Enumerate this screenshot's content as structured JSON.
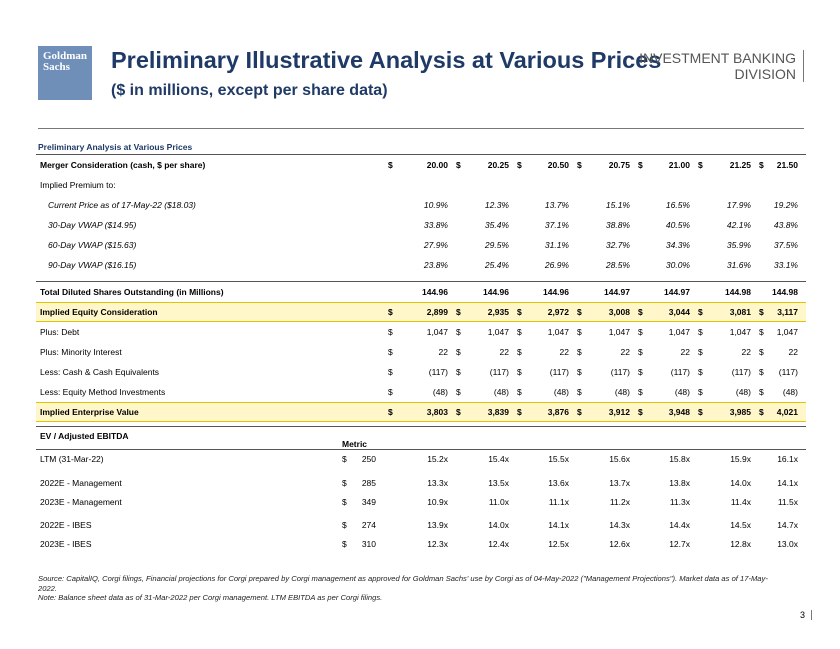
{
  "header": {
    "logo_line1": "Goldman",
    "logo_line2": "Sachs",
    "title": "Preliminary Illustrative Analysis at Various Prices",
    "subtitle": "($ in millions, except per share data)",
    "division_line1": "INVESTMENT BANKING",
    "division_line2": "DIVISION"
  },
  "table": {
    "section_title": "Preliminary Analysis at Various Prices",
    "merger": {
      "label": "Merger Consideration (cash, $ per share)",
      "values": [
        "20.00",
        "20.25",
        "20.50",
        "20.75",
        "21.00",
        "21.25",
        "21.50"
      ]
    },
    "implied_premium_label": "Implied Premium to:",
    "premiums": [
      {
        "label": "Current Price as of 17-May-22 ($18.03)",
        "values": [
          "10.9%",
          "12.3%",
          "13.7%",
          "15.1%",
          "16.5%",
          "17.9%",
          "19.2%"
        ]
      },
      {
        "label": "30-Day VWAP ($14.95)",
        "values": [
          "33.8%",
          "35.4%",
          "37.1%",
          "38.8%",
          "40.5%",
          "42.1%",
          "43.8%"
        ]
      },
      {
        "label": "60-Day VWAP ($15.63)",
        "values": [
          "27.9%",
          "29.5%",
          "31.1%",
          "32.7%",
          "34.3%",
          "35.9%",
          "37.5%"
        ]
      },
      {
        "label": "90-Day VWAP ($16.15)",
        "values": [
          "23.8%",
          "25.4%",
          "26.9%",
          "28.5%",
          "30.0%",
          "31.6%",
          "33.1%"
        ]
      }
    ],
    "shares": {
      "label": "Total Diluted Shares Outstanding (in Millions)",
      "values": [
        "144.96",
        "144.96",
        "144.96",
        "144.97",
        "144.97",
        "144.98",
        "144.98"
      ]
    },
    "equity": {
      "label": "Implied Equity Consideration",
      "values": [
        "2,899",
        "2,935",
        "2,972",
        "3,008",
        "3,044",
        "3,081",
        "3,117"
      ]
    },
    "bridge": [
      {
        "label": "Plus: Debt",
        "values": [
          "1,047",
          "1,047",
          "1,047",
          "1,047",
          "1,047",
          "1,047",
          "1,047"
        ]
      },
      {
        "label": "Plus: Minority Interest",
        "values": [
          "22",
          "22",
          "22",
          "22",
          "22",
          "22",
          "22"
        ]
      },
      {
        "label": "Less: Cash & Cash Equivalents",
        "values": [
          "(117)",
          "(117)",
          "(117)",
          "(117)",
          "(117)",
          "(117)",
          "(117)"
        ]
      },
      {
        "label": "Less: Equity Method Investments",
        "values": [
          "(48)",
          "(48)",
          "(48)",
          "(48)",
          "(48)",
          "(48)",
          "(48)"
        ]
      }
    ],
    "ev": {
      "label": "Implied Enterprise Value",
      "values": [
        "3,803",
        "3,839",
        "3,876",
        "3,912",
        "3,948",
        "3,985",
        "4,021"
      ]
    },
    "ev_ebitda_label": "EV / Adjusted EBITDA",
    "metric_label": "Metric",
    "multiples": [
      {
        "label": "LTM (31-Mar-22)",
        "metric": "250",
        "values": [
          "15.2x",
          "15.4x",
          "15.5x",
          "15.6x",
          "15.8x",
          "15.9x",
          "16.1x"
        ]
      },
      {
        "label": "2022E - Management",
        "metric": "285",
        "values": [
          "13.3x",
          "13.5x",
          "13.6x",
          "13.7x",
          "13.8x",
          "14.0x",
          "14.1x"
        ]
      },
      {
        "label": "2023E - Management",
        "metric": "349",
        "values": [
          "10.9x",
          "11.0x",
          "11.1x",
          "11.2x",
          "11.3x",
          "11.4x",
          "11.5x"
        ]
      },
      {
        "label": "2022E - IBES",
        "metric": "274",
        "values": [
          "13.9x",
          "14.0x",
          "14.1x",
          "14.3x",
          "14.4x",
          "14.5x",
          "14.7x"
        ]
      },
      {
        "label": "2023E - IBES",
        "metric": "310",
        "values": [
          "12.3x",
          "12.4x",
          "12.5x",
          "12.6x",
          "12.7x",
          "12.8x",
          "13.0x"
        ]
      }
    ],
    "dollar": "$"
  },
  "footnote": {
    "source": "Source: CapitalIQ, Corgi filings, Financial projections for Corgi prepared by Corgi management as approved for Goldman Sachs' use by Corgi as of 04-May-2022 (\"Management Projections\"). Market data as of 17-May-2022.",
    "note": "Note: Balance sheet data as of 31-Mar-2022 per Corgi management. LTM EBITDA as per Corgi filings."
  },
  "page_number": "3"
}
